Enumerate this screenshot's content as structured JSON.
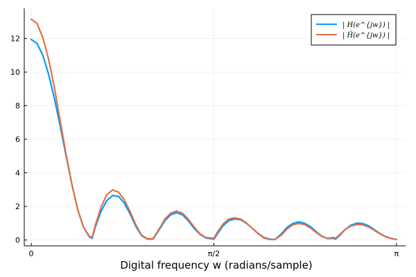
{
  "chart_data": {
    "type": "line",
    "title": "",
    "xlabel": "Digital frequency w (radians/sample)",
    "ylabel": "",
    "xlim": [
      0,
      3.14159
    ],
    "ylim": [
      -0.35,
      13.8
    ],
    "grid": true,
    "legend_position": "top-right",
    "x_ticks": [
      {
        "value": 0,
        "label": "0"
      },
      {
        "value": 1.5708,
        "label": "π/2"
      },
      {
        "value": 3.14159,
        "label": "π"
      }
    ],
    "y_ticks": [
      {
        "value": 0,
        "label": "0"
      },
      {
        "value": 2,
        "label": "2"
      },
      {
        "value": 4,
        "label": "4"
      },
      {
        "value": 6,
        "label": "6"
      },
      {
        "value": 8,
        "label": "8"
      },
      {
        "value": 10,
        "label": "10"
      },
      {
        "value": 12,
        "label": "12"
      }
    ],
    "series": [
      {
        "name": "| H(e^{jw}) |",
        "color": "#009af9",
        "x": [
          0,
          0.05,
          0.1,
          0.15,
          0.2,
          0.25,
          0.3,
          0.35,
          0.4,
          0.45,
          0.5,
          0.524,
          0.55,
          0.6,
          0.65,
          0.7,
          0.75,
          0.8,
          0.85,
          0.9,
          0.95,
          1.0,
          1.047,
          1.1,
          1.15,
          1.2,
          1.25,
          1.3,
          1.35,
          1.4,
          1.45,
          1.5,
          1.571,
          1.6,
          1.65,
          1.7,
          1.75,
          1.8,
          1.85,
          1.9,
          1.95,
          2.0,
          2.05,
          2.094,
          2.15,
          2.2,
          2.25,
          2.3,
          2.35,
          2.4,
          2.45,
          2.5,
          2.55,
          2.6,
          2.618,
          2.65,
          2.7,
          2.75,
          2.8,
          2.85,
          2.9,
          2.95,
          3.0,
          3.05,
          3.1,
          3.1416
        ],
        "y": [
          11.95,
          11.7,
          11.0,
          9.85,
          8.4,
          6.75,
          5.0,
          3.3,
          1.8,
          0.75,
          0.18,
          0.1,
          0.75,
          1.7,
          2.35,
          2.65,
          2.6,
          2.2,
          1.55,
          0.8,
          0.25,
          0.05,
          0.05,
          0.6,
          1.15,
          1.5,
          1.62,
          1.5,
          1.15,
          0.7,
          0.35,
          0.12,
          0.05,
          0.35,
          0.85,
          1.15,
          1.25,
          1.2,
          1.0,
          0.7,
          0.4,
          0.15,
          0.05,
          0.02,
          0.35,
          0.75,
          0.98,
          1.08,
          1.0,
          0.8,
          0.5,
          0.22,
          0.08,
          0.1,
          0.05,
          0.25,
          0.62,
          0.88,
          1.0,
          0.98,
          0.85,
          0.62,
          0.38,
          0.2,
          0.08,
          0.03
        ]
      },
      {
        "name": "| Ĥ(e^{jw}) |",
        "color": "#e26f46",
        "x": [
          0,
          0.05,
          0.1,
          0.15,
          0.2,
          0.25,
          0.3,
          0.35,
          0.4,
          0.45,
          0.5,
          0.524,
          0.55,
          0.6,
          0.65,
          0.7,
          0.75,
          0.8,
          0.85,
          0.9,
          0.95,
          1.0,
          1.047,
          1.1,
          1.15,
          1.2,
          1.25,
          1.3,
          1.35,
          1.4,
          1.45,
          1.5,
          1.571,
          1.6,
          1.65,
          1.7,
          1.75,
          1.8,
          1.85,
          1.9,
          1.95,
          2.0,
          2.05,
          2.094,
          2.15,
          2.2,
          2.25,
          2.3,
          2.35,
          2.4,
          2.45,
          2.5,
          2.55,
          2.6,
          2.618,
          2.65,
          2.7,
          2.75,
          2.8,
          2.85,
          2.9,
          2.95,
          3.0,
          3.05,
          3.1,
          3.1416
        ],
        "y": [
          13.15,
          12.9,
          12.05,
          10.75,
          9.05,
          7.05,
          5.1,
          3.3,
          1.8,
          0.75,
          0.22,
          0.15,
          0.85,
          1.95,
          2.7,
          2.98,
          2.85,
          2.4,
          1.7,
          0.9,
          0.28,
          0.07,
          0.08,
          0.65,
          1.25,
          1.6,
          1.72,
          1.6,
          1.25,
          0.78,
          0.38,
          0.15,
          0.1,
          0.45,
          0.95,
          1.25,
          1.32,
          1.25,
          1.02,
          0.7,
          0.38,
          0.12,
          0.03,
          0.02,
          0.28,
          0.65,
          0.9,
          0.98,
          0.92,
          0.72,
          0.45,
          0.2,
          0.1,
          0.15,
          0.1,
          0.3,
          0.62,
          0.83,
          0.92,
          0.9,
          0.78,
          0.58,
          0.36,
          0.18,
          0.08,
          0.03
        ]
      }
    ]
  }
}
